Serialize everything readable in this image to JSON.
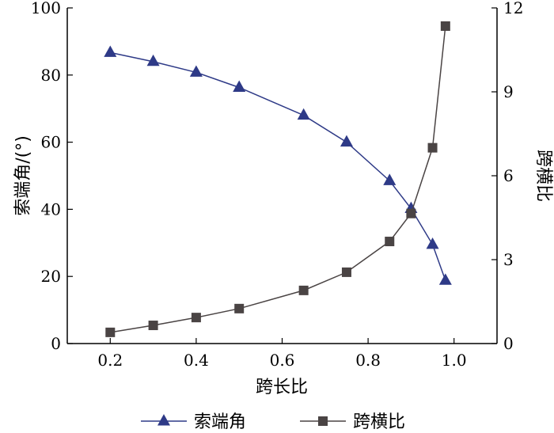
{
  "chart_data": {
    "type": "line",
    "xlabel": "跨长比",
    "ylabel_left": "索端角/(°)",
    "ylabel_right": "跨横比",
    "xlim": [
      0.1,
      1.1
    ],
    "ylim_left": [
      0,
      100
    ],
    "ylim_right": [
      0,
      12
    ],
    "xticks": [
      "0.2",
      "0.4",
      "0.6",
      "0.8",
      "1.0"
    ],
    "yticks_left": [
      "0",
      "20",
      "40",
      "60",
      "80",
      "100"
    ],
    "yticks_right": [
      "0",
      "3",
      "6",
      "9",
      "12"
    ],
    "legend_position": "bottom",
    "series": [
      {
        "name": "索端角",
        "axis": "left",
        "marker": "triangle",
        "color": "#2e3a87",
        "x": [
          0.2,
          0.3,
          0.4,
          0.5,
          0.65,
          0.75,
          0.85,
          0.9,
          0.95,
          0.98
        ],
        "y": [
          86.7,
          84.0,
          80.8,
          76.3,
          68.0,
          60.0,
          48.5,
          40.2,
          29.5,
          18.8
        ]
      },
      {
        "name": "跨横比",
        "axis": "right",
        "marker": "square",
        "color": "#4a4444",
        "x": [
          0.2,
          0.3,
          0.4,
          0.5,
          0.65,
          0.75,
          0.85,
          0.9,
          0.95,
          0.98
        ],
        "y": [
          0.4,
          0.65,
          0.93,
          1.25,
          1.9,
          2.55,
          3.65,
          4.65,
          7.0,
          11.35
        ]
      }
    ]
  }
}
